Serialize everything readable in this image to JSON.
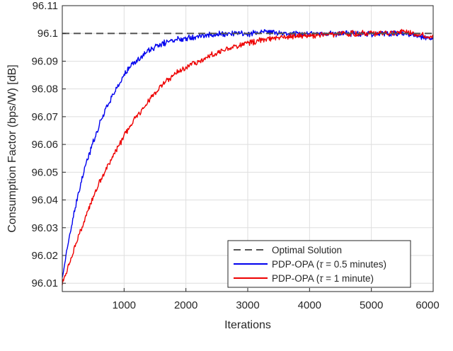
{
  "chart_data": {
    "type": "line",
    "title": "",
    "xlabel": "Iterations",
    "ylabel": "Consumption Factor (bps/W) [dB]",
    "xlim": [
      0,
      6000
    ],
    "ylim": [
      96.007,
      96.11
    ],
    "xticks": [
      1000,
      2000,
      3000,
      4000,
      5000,
      6000
    ],
    "xtick_labels": [
      "1000",
      "2000",
      "3000",
      "4000",
      "5000",
      "6000"
    ],
    "yticks": [
      96.01,
      96.02,
      96.03,
      96.04,
      96.05,
      96.06,
      96.07,
      96.08,
      96.09,
      96.1,
      96.11
    ],
    "ytick_labels": [
      "96.01",
      "96.02",
      "96.03",
      "96.04",
      "96.05",
      "96.06",
      "96.07",
      "96.08",
      "96.09",
      "96.1",
      "96.11"
    ],
    "grid": true,
    "legend_position": "bottom-right",
    "series": [
      {
        "name": "Optimal Solution",
        "color": "#555555",
        "style": "dashed",
        "x": [
          0,
          6000
        ],
        "y": [
          96.1,
          96.1
        ]
      },
      {
        "name": "PDP-OPA (τ = 0.5 minutes)",
        "legend_parts": [
          "PDP-OPA (",
          "τ",
          " = 0.5 minutes)"
        ],
        "color": "#0000ee",
        "style": "solid",
        "x": [
          0,
          100,
          200,
          300,
          400,
          500,
          600,
          700,
          800,
          900,
          1000,
          1100,
          1200,
          1300,
          1400,
          1500,
          1600,
          1700,
          1800,
          1900,
          2000,
          2200,
          2400,
          2600,
          2800,
          3000,
          3300,
          3600,
          4000,
          4500,
          5000,
          5500,
          6000
        ],
        "y": [
          96.012,
          96.025,
          96.036,
          96.046,
          96.054,
          96.061,
          96.067,
          96.073,
          96.077,
          96.081,
          96.085,
          96.088,
          96.09,
          96.092,
          96.094,
          96.095,
          96.096,
          96.097,
          96.0975,
          96.098,
          96.0985,
          96.099,
          96.0995,
          96.0998,
          96.1,
          96.1,
          96.1005,
          96.1,
          96.1,
          96.1,
          96.1,
          96.1,
          96.098
        ]
      },
      {
        "name": "PDP-OPA (τ = 1 minute)",
        "legend_parts": [
          "PDP-OPA (",
          "τ",
          " = 1 minute)"
        ],
        "color": "#ee0000",
        "style": "solid",
        "x": [
          0,
          100,
          200,
          300,
          400,
          500,
          600,
          700,
          800,
          900,
          1000,
          1200,
          1400,
          1600,
          1800,
          2000,
          2200,
          2400,
          2600,
          2800,
          3000,
          3200,
          3500,
          3800,
          4200,
          4600,
          5000,
          5500,
          6000
        ],
        "y": [
          96.01,
          96.016,
          96.023,
          96.029,
          96.035,
          96.041,
          96.046,
          96.051,
          96.055,
          96.059,
          96.063,
          96.07,
          96.076,
          96.081,
          96.085,
          96.088,
          96.09,
          96.092,
          96.094,
          96.0955,
          96.0965,
          96.0975,
          96.0985,
          96.099,
          96.0995,
          96.1,
          96.1,
          96.1005,
          96.099
        ]
      }
    ]
  }
}
